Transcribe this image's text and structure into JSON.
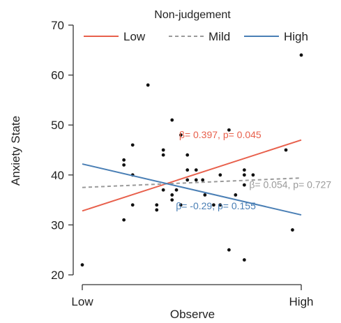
{
  "chart_data": {
    "type": "scatter",
    "xlabel": "Observe",
    "ylabel": "Anxiety State",
    "x_tick_labels": [
      "Low",
      "High"
    ],
    "xlim": [
      0,
      1
    ],
    "ylim": [
      20,
      70
    ],
    "yticks": [
      20,
      30,
      40,
      50,
      60,
      70
    ],
    "grid": false,
    "legend": {
      "title": "Non-judgement",
      "placement": "top",
      "entries": [
        "Low",
        "Mild",
        "High"
      ]
    },
    "points": [
      {
        "x": 0.0,
        "y": 22
      },
      {
        "x": 0.19,
        "y": 43
      },
      {
        "x": 0.19,
        "y": 42
      },
      {
        "x": 0.19,
        "y": 31
      },
      {
        "x": 0.23,
        "y": 46
      },
      {
        "x": 0.23,
        "y": 40
      },
      {
        "x": 0.23,
        "y": 34
      },
      {
        "x": 0.3,
        "y": 58
      },
      {
        "x": 0.34,
        "y": 34
      },
      {
        "x": 0.34,
        "y": 33
      },
      {
        "x": 0.37,
        "y": 45
      },
      {
        "x": 0.37,
        "y": 44
      },
      {
        "x": 0.37,
        "y": 37
      },
      {
        "x": 0.41,
        "y": 51
      },
      {
        "x": 0.41,
        "y": 36
      },
      {
        "x": 0.41,
        "y": 35
      },
      {
        "x": 0.43,
        "y": 37
      },
      {
        "x": 0.45,
        "y": 48
      },
      {
        "x": 0.45,
        "y": 34
      },
      {
        "x": 0.48,
        "y": 44
      },
      {
        "x": 0.48,
        "y": 41
      },
      {
        "x": 0.48,
        "y": 39
      },
      {
        "x": 0.52,
        "y": 41
      },
      {
        "x": 0.52,
        "y": 39
      },
      {
        "x": 0.55,
        "y": 39
      },
      {
        "x": 0.56,
        "y": 36
      },
      {
        "x": 0.6,
        "y": 34
      },
      {
        "x": 0.63,
        "y": 34
      },
      {
        "x": 0.63,
        "y": 40
      },
      {
        "x": 0.67,
        "y": 49
      },
      {
        "x": 0.67,
        "y": 25
      },
      {
        "x": 0.7,
        "y": 36
      },
      {
        "x": 0.74,
        "y": 41
      },
      {
        "x": 0.74,
        "y": 40
      },
      {
        "x": 0.74,
        "y": 38
      },
      {
        "x": 0.74,
        "y": 23
      },
      {
        "x": 0.78,
        "y": 40
      },
      {
        "x": 0.93,
        "y": 45
      },
      {
        "x": 0.96,
        "y": 29
      },
      {
        "x": 1.0,
        "y": 64
      }
    ],
    "series": [
      {
        "name": "Low",
        "color": "#e8604c",
        "style": "solid",
        "x": [
          0,
          1
        ],
        "y": [
          32.8,
          47.0
        ]
      },
      {
        "name": "Mild",
        "color": "#9a9a9a",
        "style": "dashed",
        "x": [
          0,
          1
        ],
        "y": [
          37.5,
          39.4
        ]
      },
      {
        "name": "High",
        "color": "#4a7fb5",
        "style": "solid",
        "x": [
          0,
          1
        ],
        "y": [
          42.2,
          32.0
        ]
      }
    ],
    "annotations": [
      {
        "series": "Low",
        "text": "β= 0.397, p= 0.045",
        "x": 0.63,
        "y": 47.4
      },
      {
        "series": "Mild",
        "text": "β= 0.054, p= 0.727",
        "x": 0.95,
        "y": 37.4
      },
      {
        "series": "High",
        "text": "β= -0.29, p= 0.155",
        "x": 0.61,
        "y": 33.1
      }
    ]
  }
}
